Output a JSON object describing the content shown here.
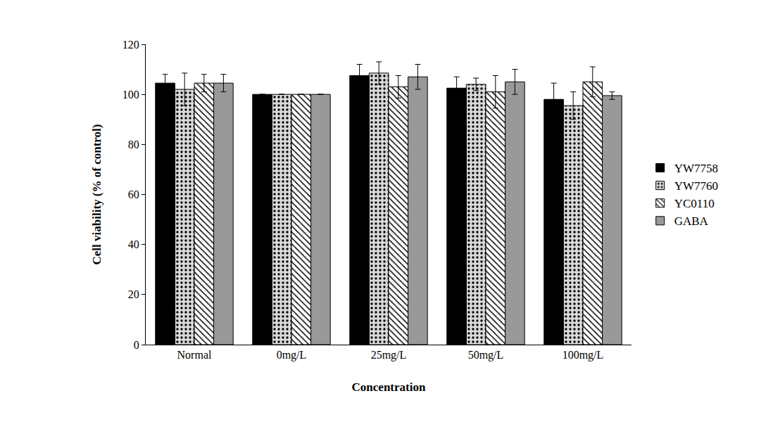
{
  "chart_data": {
    "type": "bar",
    "x_label": "Concentration",
    "y_label": "Cell viability (% of control)",
    "categories": [
      "Normal",
      "0mg/L",
      "25mg/L",
      "50mg/L",
      "100mg/L"
    ],
    "series": [
      {
        "name": "YW7758",
        "color": "#000000",
        "values": [
          104.5,
          100,
          107.5,
          102.5,
          98
        ],
        "errors": [
          3.5,
          0,
          4.5,
          4.5,
          6.5
        ]
      },
      {
        "name": "YW7760",
        "color": "#d9d9d9",
        "values": [
          102,
          100,
          108.5,
          104,
          95.5
        ],
        "errors": [
          6.5,
          0,
          4.5,
          2.5,
          5.5
        ]
      },
      {
        "name": "YC0110",
        "color": "#ffffff",
        "values": [
          104.5,
          100,
          103,
          101,
          105
        ],
        "errors": [
          3.5,
          0,
          4.5,
          6.5,
          6
        ]
      },
      {
        "name": "GABA",
        "color": "#999999",
        "values": [
          104.5,
          100,
          107,
          105,
          99.5
        ],
        "errors": [
          3.5,
          0,
          5,
          5,
          1.5
        ]
      }
    ],
    "ylim": [
      0,
      120
    ],
    "yticks": [
      0,
      20,
      40,
      60,
      80,
      100,
      120
    ],
    "grid": false,
    "legend": "right"
  }
}
